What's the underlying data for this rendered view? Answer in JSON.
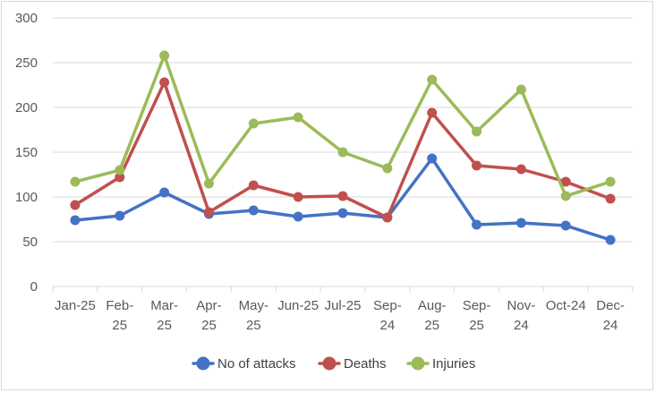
{
  "chart_data": {
    "type": "line",
    "categories": [
      [
        "Jan-25"
      ],
      [
        "Feb-",
        "25"
      ],
      [
        "Mar-",
        "25"
      ],
      [
        "Apr-",
        "25"
      ],
      [
        "May-",
        "25"
      ],
      [
        "Jun-25"
      ],
      [
        "Jul-25"
      ],
      [
        "Sep-",
        "24"
      ],
      [
        "Aug-",
        "25"
      ],
      [
        "Sep-",
        "25"
      ],
      [
        "Nov-",
        "24"
      ],
      [
        "Oct-24"
      ],
      [
        "Dec-",
        "24"
      ]
    ],
    "series": [
      {
        "name": "No of attacks",
        "color": "#4472c4",
        "values": [
          74,
          79,
          105,
          81,
          85,
          78,
          82,
          77,
          143,
          69,
          71,
          68,
          52
        ]
      },
      {
        "name": "Deaths",
        "color": "#c0504d",
        "values": [
          91,
          122,
          228,
          83,
          113,
          100,
          101,
          77,
          194,
          135,
          131,
          117,
          98
        ]
      },
      {
        "name": "Injuries",
        "color": "#9bbb59",
        "values": [
          117,
          130,
          258,
          115,
          182,
          189,
          150,
          132,
          231,
          173,
          220,
          101,
          117
        ]
      }
    ],
    "ylim": [
      0,
      300
    ],
    "yticks": [
      "0",
      "50",
      "100",
      "150",
      "200",
      "250",
      "300"
    ],
    "grid": true,
    "legend": "bottom"
  }
}
